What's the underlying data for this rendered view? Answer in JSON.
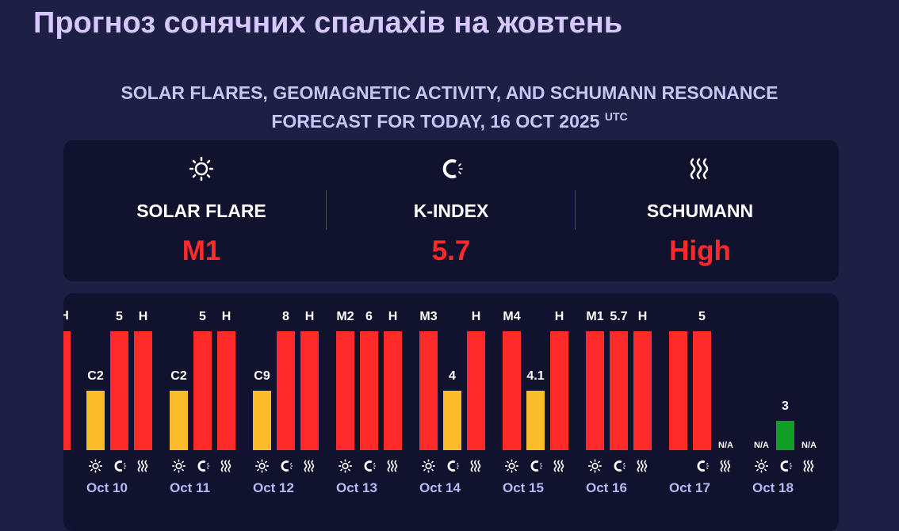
{
  "header": {
    "title": "Прогноз сонячних спалахів на жовтень",
    "subtitle_line1": "SOLAR FLARES, GEOMAGNETIC ACTIVITY, AND SCHUMANN RESONANCE",
    "subtitle_line2": "FORECAST FOR TODAY, 16 OCT 2025",
    "subtitle_tz": "UTC"
  },
  "summary": [
    {
      "icon": "sun-icon",
      "label": "SOLAR FLARE",
      "value": "M1"
    },
    {
      "icon": "magnet-icon",
      "label": "K-INDEX",
      "value": "5.7"
    },
    {
      "icon": "waves-icon",
      "label": "SCHUMANN",
      "value": "High"
    }
  ],
  "colors": {
    "background": "#1e1f45",
    "card": "#11132e",
    "title": "#d6c8ff",
    "high_red": "#ff2b2b",
    "moderate_yellow": "#fbbc2c",
    "low_green": "#0f9d24",
    "date_label": "#b5b9f5"
  },
  "chart_data": {
    "type": "bar",
    "categories": [
      "Oct 10",
      "Oct 11",
      "Oct 12",
      "Oct 13",
      "Oct 14",
      "Oct 15",
      "Oct 16",
      "Oct 17",
      "Oct 18"
    ],
    "series": [
      {
        "icon": "sun-icon",
        "labels": [
          "C2",
          "C2",
          "C9",
          "M2",
          "M3",
          "M4",
          "M1",
          "",
          "N/A"
        ],
        "level": [
          "moderate",
          "moderate",
          "moderate",
          "high",
          "high",
          "high",
          "high",
          "high",
          "na"
        ]
      },
      {
        "icon": "magnet-icon",
        "values": [
          5,
          5,
          8,
          6,
          4,
          4.1,
          5.7,
          5,
          3
        ],
        "labels": [
          "5",
          "5",
          "8",
          "6",
          "4",
          "4.1",
          "5.7",
          "5",
          "3"
        ],
        "level": [
          "high",
          "high",
          "high",
          "high",
          "moderate",
          "moderate",
          "high",
          "high",
          "low"
        ]
      },
      {
        "icon": "waves-icon",
        "labels": [
          "H",
          "H",
          "H",
          "H",
          "H",
          "H",
          "H",
          "N/A",
          "N/A"
        ],
        "level": [
          "high",
          "high",
          "high",
          "high",
          "high",
          "high",
          "high",
          "na",
          "na"
        ]
      }
    ],
    "partial_left_label": "H",
    "na_label": "N/A"
  }
}
